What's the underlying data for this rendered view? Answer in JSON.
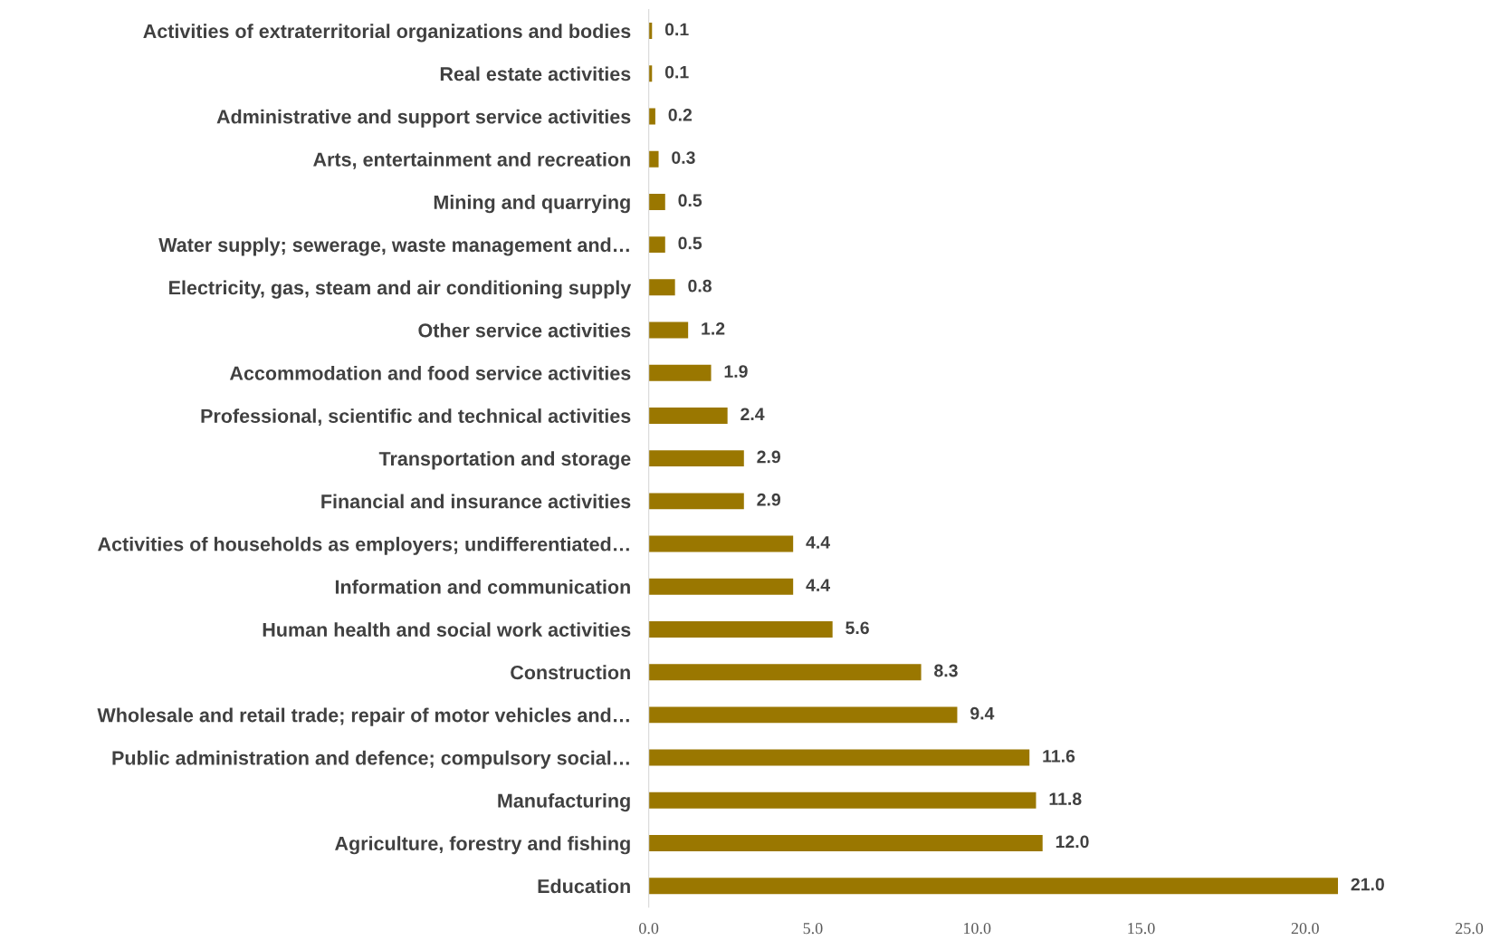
{
  "chart_data": {
    "type": "bar",
    "orientation": "horizontal",
    "categories": [
      "Activities of extraterritorial organizations and bodies",
      "Real estate activities",
      "Administrative and support service activities",
      "Arts, entertainment and recreation",
      "Mining and quarrying",
      "Water supply; sewerage, waste management and…",
      "Electricity, gas, steam and air conditioning supply",
      "Other service activities",
      "Accommodation and food service activities",
      "Professional, scientific and technical activities",
      "Transportation and storage",
      "Financial and insurance activities",
      "Activities of households as employers; undifferentiated…",
      "Information and communication",
      "Human health and social work activities",
      "Construction",
      "Wholesale and retail trade; repair of motor vehicles and…",
      "Public administration and defence; compulsory social…",
      "Manufacturing",
      "Agriculture, forestry and fishing",
      "Education"
    ],
    "values": [
      0.1,
      0.1,
      0.2,
      0.3,
      0.5,
      0.5,
      0.8,
      1.2,
      1.9,
      2.4,
      2.9,
      2.9,
      4.4,
      4.4,
      5.6,
      8.3,
      9.4,
      11.6,
      11.8,
      12.0,
      21.0
    ],
    "value_labels": [
      "0.1",
      "0.1",
      "0.2",
      "0.3",
      "0.5",
      "0.5",
      "0.8",
      "1.2",
      "1.9",
      "2.4",
      "2.9",
      "2.9",
      "4.4",
      "4.4",
      "5.6",
      "8.3",
      "9.4",
      "11.6",
      "11.8",
      "12.0",
      "21.0"
    ],
    "color": "#9a7700",
    "xlim": [
      0,
      25
    ],
    "xticks": [
      {
        "value": 0,
        "label": "0.0"
      },
      {
        "value": 5,
        "label": "5.0"
      },
      {
        "value": 10,
        "label": "10.0"
      },
      {
        "value": 15,
        "label": "15.0"
      },
      {
        "value": 20,
        "label": "20.0"
      },
      {
        "value": 25,
        "label": "25.0"
      }
    ],
    "grid": false,
    "legend": false
  }
}
